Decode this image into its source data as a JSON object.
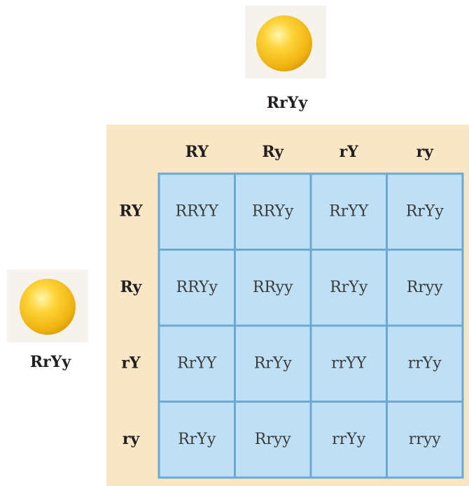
{
  "top_parent": {
    "genotype": "RrYy"
  },
  "left_parent": {
    "genotype": "RrYy"
  },
  "columns": {
    "gametes": [
      "RY",
      "Ry",
      "rY",
      "ry"
    ]
  },
  "rows": {
    "gametes": [
      "RY",
      "Ry",
      "rY",
      "ry"
    ]
  },
  "cells": [
    [
      "RRYY",
      "RRYy",
      "RrYY",
      "RrYy"
    ],
    [
      "RRYy",
      "RRyy",
      "RrYy",
      "Rryy"
    ],
    [
      "RrYY",
      "RrYy",
      "rrYY",
      "rrYy"
    ],
    [
      "RrYy",
      "Rryy",
      "rrYy",
      "rryy"
    ]
  ]
}
